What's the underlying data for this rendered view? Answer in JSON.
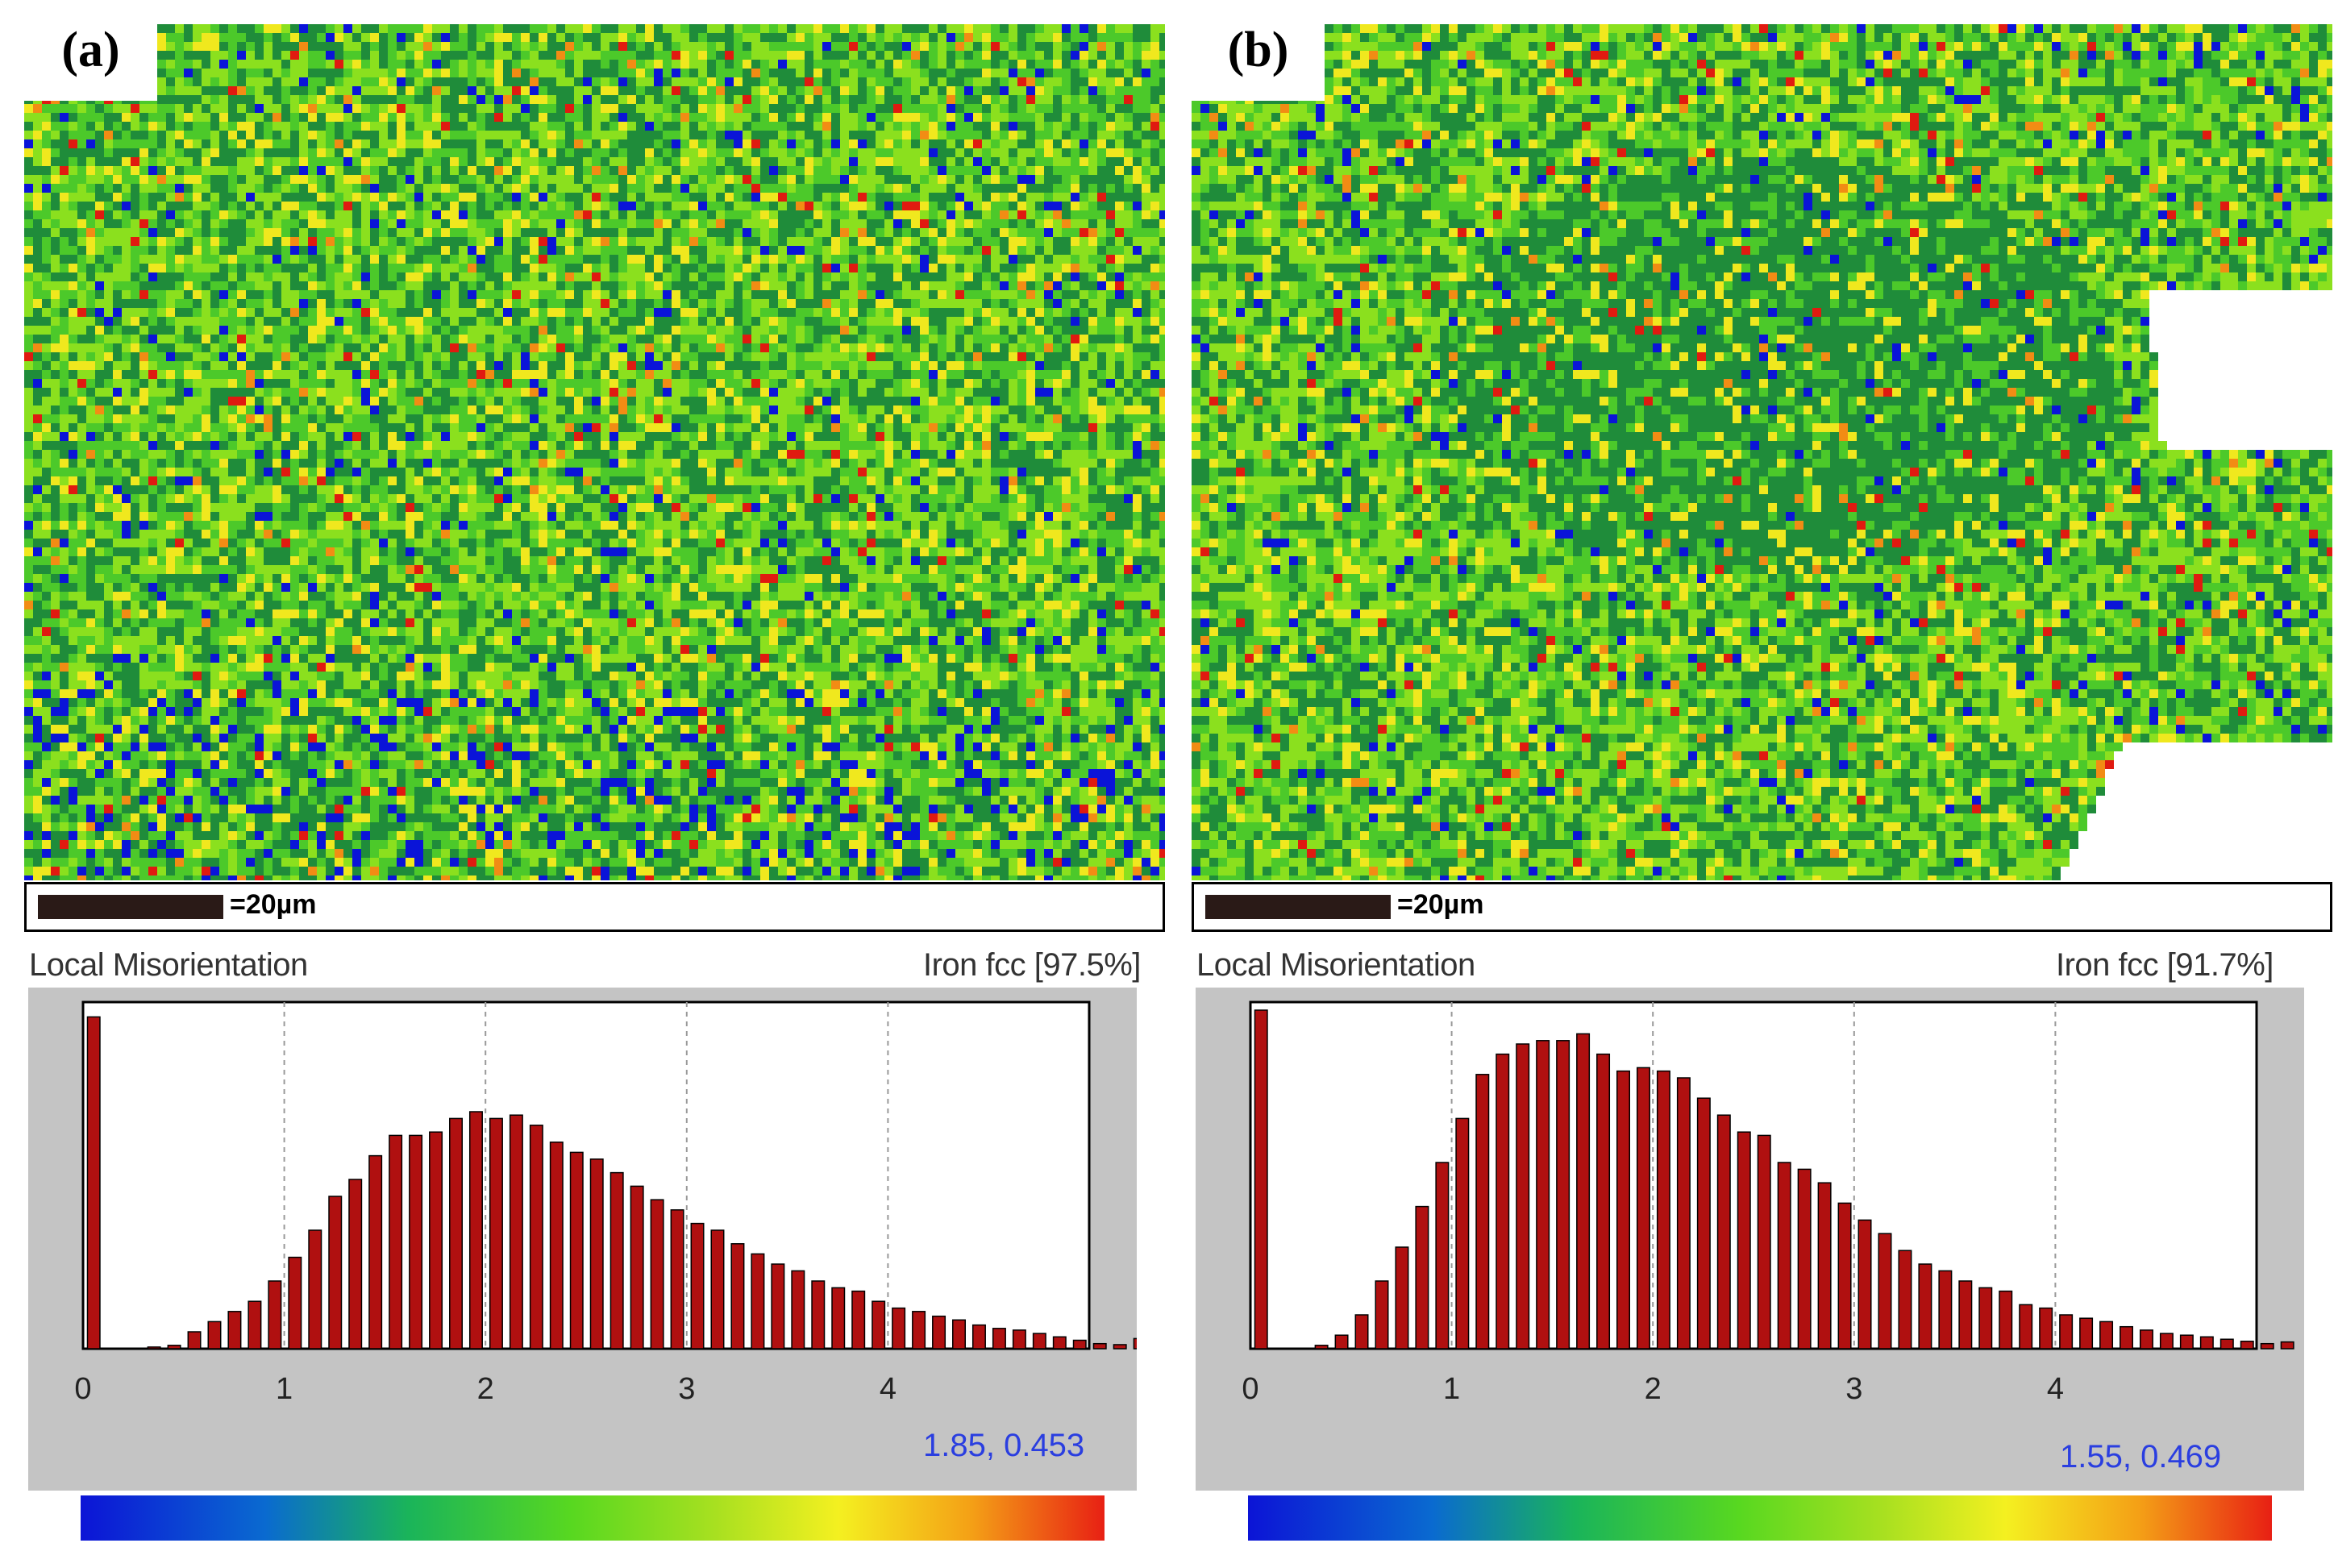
{
  "panels": [
    {
      "id": "a",
      "label": "(a)",
      "scale_text": "=20µm",
      "hist_title_left": "Local Misorientation",
      "hist_title_right": "Iron fcc [97.5%]",
      "stat_text": "1.85, 0.453"
    },
    {
      "id": "b",
      "label": "(b)",
      "scale_text": "=20µm",
      "hist_title_left": "Local Misorientation",
      "hist_title_right": "Iron fcc [91.7%]",
      "stat_text": "1.55, 0.469"
    }
  ],
  "colors": {
    "bar_fill": "#b01010",
    "bar_stroke": "#000000",
    "stat_text": "#2a3ee0",
    "map_blue": "#0a14d8",
    "map_darkgreen": "#1f8c3a",
    "map_green": "#4cc92a",
    "map_lime": "#8be01e",
    "map_yellow": "#f0e81e",
    "map_orange": "#f28c14",
    "map_red": "#e01a10"
  },
  "chart_data": [
    {
      "type": "bar",
      "title": "Local Misorientation",
      "subtitle": "Iron fcc [97.5%]",
      "xlabel": "",
      "ylabel": "",
      "xlim": [
        0,
        5
      ],
      "ylim": [
        0,
        1
      ],
      "xticks": [
        0,
        1,
        2,
        3,
        4
      ],
      "bin_width": 0.1,
      "values": [
        0.98,
        0.0,
        0.0,
        0.005,
        0.01,
        0.05,
        0.08,
        0.11,
        0.14,
        0.2,
        0.27,
        0.35,
        0.45,
        0.5,
        0.57,
        0.63,
        0.63,
        0.64,
        0.68,
        0.7,
        0.68,
        0.69,
        0.66,
        0.61,
        0.58,
        0.56,
        0.52,
        0.48,
        0.44,
        0.41,
        0.37,
        0.35,
        0.31,
        0.28,
        0.25,
        0.23,
        0.2,
        0.18,
        0.17,
        0.14,
        0.12,
        0.11,
        0.096,
        0.085,
        0.07,
        0.06,
        0.055,
        0.045,
        0.035,
        0.025,
        0.015,
        0.012,
        0.03
      ],
      "annotation": "1.85, 0.453"
    },
    {
      "type": "bar",
      "title": "Local Misorientation",
      "subtitle": "Iron fcc [91.7%]",
      "xlabel": "",
      "ylabel": "",
      "xlim": [
        0,
        5
      ],
      "ylim": [
        0,
        1
      ],
      "xticks": [
        0,
        1,
        2,
        3,
        4
      ],
      "bin_width": 0.1,
      "values": [
        1.0,
        0.0,
        0.0,
        0.01,
        0.04,
        0.1,
        0.2,
        0.3,
        0.42,
        0.55,
        0.68,
        0.81,
        0.87,
        0.9,
        0.91,
        0.91,
        0.93,
        0.87,
        0.82,
        0.83,
        0.82,
        0.8,
        0.74,
        0.69,
        0.64,
        0.63,
        0.55,
        0.53,
        0.49,
        0.43,
        0.38,
        0.34,
        0.29,
        0.25,
        0.23,
        0.2,
        0.18,
        0.17,
        0.13,
        0.12,
        0.1,
        0.09,
        0.08,
        0.065,
        0.055,
        0.045,
        0.04,
        0.035,
        0.028,
        0.022,
        0.015,
        0.02
      ],
      "annotation": "1.55, 0.469"
    }
  ]
}
